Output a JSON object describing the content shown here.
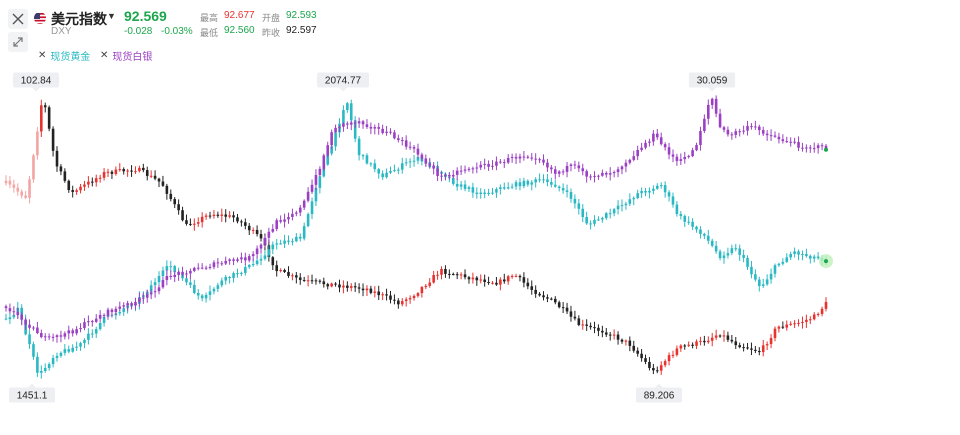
{
  "header": {
    "title": "美元指数",
    "code": "DXY",
    "price": "92.569",
    "change": "-0.028",
    "change_pct": "-0.03%",
    "stats": {
      "high_label": "最高",
      "high": "92.677",
      "open_label": "开盘",
      "open": "92.593",
      "low_label": "最低",
      "low": "92.560",
      "prev_close_label": "昨收",
      "prev_close": "92.597"
    }
  },
  "legend": [
    {
      "name": "现货黄金",
      "color": "#2ab9c4"
    },
    {
      "name": "现货白银",
      "color": "#9b40c4"
    }
  ],
  "icons": {
    "close": "close-icon",
    "expand": "expand-icon",
    "flag": "us-flag-icon",
    "caret": "caret-down-icon"
  },
  "colors": {
    "up": "#e8322f",
    "down": "#222222",
    "gold": "#2ab9c4",
    "silver": "#9b40c4",
    "last_dot": "#1ba64b"
  },
  "chart_data": {
    "type": "candlestick",
    "annotations": [
      {
        "label": "102.84",
        "series": "DXY",
        "kind": "high"
      },
      {
        "label": "89.206",
        "series": "DXY",
        "kind": "low"
      },
      {
        "label": "2074.77",
        "series": "现货黄金",
        "kind": "high"
      },
      {
        "label": "1451.1",
        "series": "现货黄金",
        "kind": "low"
      },
      {
        "label": "30.059",
        "series": "现货白银",
        "kind": "high"
      }
    ],
    "series": [
      {
        "name": "DXY",
        "color_up": "#e8322f",
        "color_down": "#222222",
        "path": [
          [
            0.0,
            98.5
          ],
          [
            0.025,
            97.8
          ],
          [
            0.045,
            102.84
          ],
          [
            0.06,
            99.5
          ],
          [
            0.08,
            98.0
          ],
          [
            0.12,
            99.0
          ],
          [
            0.16,
            99.2
          ],
          [
            0.19,
            98.5
          ],
          [
            0.22,
            96.4
          ],
          [
            0.25,
            97.0
          ],
          [
            0.28,
            96.8
          ],
          [
            0.31,
            95.8
          ],
          [
            0.33,
            94.2
          ],
          [
            0.36,
            93.7
          ],
          [
            0.4,
            93.5
          ],
          [
            0.44,
            93.3
          ],
          [
            0.48,
            92.6
          ],
          [
            0.5,
            93.1
          ],
          [
            0.53,
            94.2
          ],
          [
            0.56,
            93.9
          ],
          [
            0.6,
            93.6
          ],
          [
            0.62,
            94.0
          ],
          [
            0.64,
            93.3
          ],
          [
            0.67,
            92.6
          ],
          [
            0.7,
            91.5
          ],
          [
            0.73,
            91.2
          ],
          [
            0.76,
            90.6
          ],
          [
            0.79,
            89.206
          ],
          [
            0.82,
            90.4
          ],
          [
            0.85,
            90.7
          ],
          [
            0.87,
            91.1
          ],
          [
            0.89,
            90.6
          ],
          [
            0.92,
            90.2
          ],
          [
            0.94,
            91.4
          ],
          [
            0.965,
            91.6
          ],
          [
            0.985,
            91.9
          ],
          [
            1.0,
            92.569
          ]
        ]
      },
      {
        "name": "现货黄金",
        "color": "#2ab9c4",
        "path": [
          [
            0.0,
            1580
          ],
          [
            0.015,
            1600
          ],
          [
            0.04,
            1451.1
          ],
          [
            0.06,
            1500
          ],
          [
            0.09,
            1520
          ],
          [
            0.12,
            1580
          ],
          [
            0.16,
            1620
          ],
          [
            0.2,
            1700
          ],
          [
            0.24,
            1620
          ],
          [
            0.26,
            1660
          ],
          [
            0.3,
            1700
          ],
          [
            0.33,
            1750
          ],
          [
            0.36,
            1760
          ],
          [
            0.38,
            1890
          ],
          [
            0.4,
            1980
          ],
          [
            0.415,
            2074.77
          ],
          [
            0.43,
            1950
          ],
          [
            0.46,
            1900
          ],
          [
            0.5,
            1940
          ],
          [
            0.53,
            1910
          ],
          [
            0.55,
            1880
          ],
          [
            0.58,
            1860
          ],
          [
            0.62,
            1880
          ],
          [
            0.65,
            1890
          ],
          [
            0.67,
            1880
          ],
          [
            0.69,
            1850
          ],
          [
            0.71,
            1790
          ],
          [
            0.74,
            1820
          ],
          [
            0.77,
            1860
          ],
          [
            0.8,
            1880
          ],
          [
            0.82,
            1810
          ],
          [
            0.85,
            1770
          ],
          [
            0.87,
            1720
          ],
          [
            0.89,
            1740
          ],
          [
            0.92,
            1650
          ],
          [
            0.94,
            1700
          ],
          [
            0.96,
            1730
          ],
          [
            0.98,
            1720
          ],
          [
            1.0,
            1712
          ]
        ]
      },
      {
        "name": "现货白银",
        "color": "#9b40c4",
        "path": [
          [
            0.0,
            15.0
          ],
          [
            0.05,
            12.6
          ],
          [
            0.08,
            13.2
          ],
          [
            0.12,
            14.5
          ],
          [
            0.17,
            15.6
          ],
          [
            0.2,
            17.2
          ],
          [
            0.24,
            17.8
          ],
          [
            0.28,
            18.3
          ],
          [
            0.3,
            18.5
          ],
          [
            0.33,
            21.0
          ],
          [
            0.36,
            22.0
          ],
          [
            0.38,
            24.5
          ],
          [
            0.4,
            27.8
          ],
          [
            0.43,
            28.2
          ],
          [
            0.47,
            27.2
          ],
          [
            0.5,
            26.0
          ],
          [
            0.53,
            24.2
          ],
          [
            0.56,
            24.8
          ],
          [
            0.6,
            25.2
          ],
          [
            0.63,
            25.8
          ],
          [
            0.65,
            25.6
          ],
          [
            0.67,
            24.5
          ],
          [
            0.69,
            25.0
          ],
          [
            0.71,
            24.3
          ],
          [
            0.74,
            24.6
          ],
          [
            0.76,
            25.5
          ],
          [
            0.79,
            27.2
          ],
          [
            0.82,
            25.2
          ],
          [
            0.84,
            26.2
          ],
          [
            0.86,
            30.059
          ],
          [
            0.87,
            27.8
          ],
          [
            0.88,
            27.2
          ],
          [
            0.91,
            27.8
          ],
          [
            0.94,
            27.0
          ],
          [
            0.97,
            26.4
          ],
          [
            1.0,
            26.3
          ]
        ]
      }
    ]
  }
}
